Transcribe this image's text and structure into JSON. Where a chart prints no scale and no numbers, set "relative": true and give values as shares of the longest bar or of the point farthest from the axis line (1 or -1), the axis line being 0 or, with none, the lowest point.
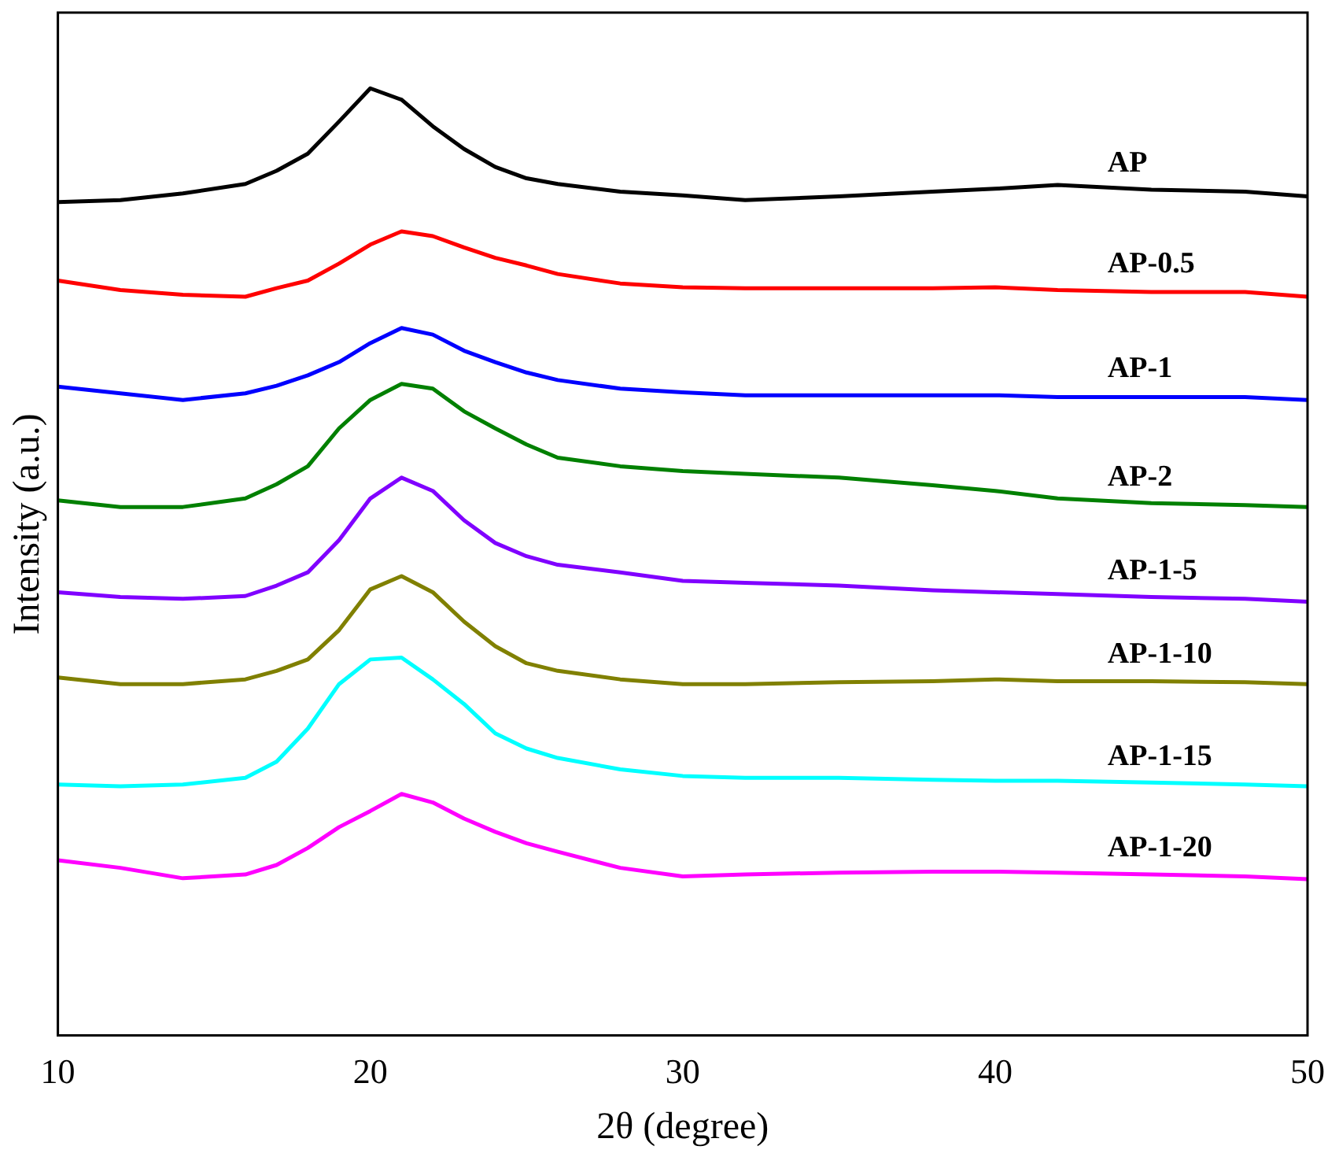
{
  "chart_data": {
    "type": "line",
    "relative": true,
    "xlabel": "2θ (degree)",
    "ylabel": "Intensity (a.u.)",
    "x": [
      10,
      12,
      14,
      16,
      17,
      18,
      19,
      20,
      21,
      22,
      23,
      24,
      25,
      26,
      28,
      30,
      32,
      35,
      38,
      40,
      42,
      45,
      48,
      50
    ],
    "xlim": [
      10,
      50
    ],
    "xticks": [
      10,
      20,
      30,
      40,
      50
    ],
    "grid": false,
    "legend": false,
    "marker": "none",
    "line_style": "solid",
    "series": [
      {
        "name": "AP",
        "color": "#000000",
        "values": [
          0.88,
          0.882,
          0.889,
          0.899,
          0.913,
          0.931,
          0.965,
          1,
          0.988,
          0.96,
          0.936,
          0.917,
          0.905,
          0.899,
          0.891,
          0.887,
          0.882,
          0.886,
          0.891,
          0.894,
          0.898,
          0.893,
          0.891,
          0.886
        ]
      },
      {
        "name": "AP-0.5",
        "color": "#ff0000",
        "values": [
          0.797,
          0.787,
          0.782,
          0.78,
          0.789,
          0.797,
          0.815,
          0.835,
          0.849,
          0.844,
          0.832,
          0.821,
          0.813,
          0.804,
          0.794,
          0.79,
          0.789,
          0.789,
          0.789,
          0.79,
          0.787,
          0.785,
          0.785,
          0.78
        ]
      },
      {
        "name": "AP-1",
        "color": "#0000ff",
        "values": [
          0.685,
          0.678,
          0.671,
          0.678,
          0.686,
          0.697,
          0.711,
          0.731,
          0.747,
          0.74,
          0.723,
          0.711,
          0.7,
          0.692,
          0.683,
          0.679,
          0.676,
          0.676,
          0.676,
          0.676,
          0.674,
          0.674,
          0.674,
          0.671
        ]
      },
      {
        "name": "AP-2",
        "color": "#008000",
        "values": [
          0.565,
          0.558,
          0.558,
          0.567,
          0.582,
          0.601,
          0.641,
          0.671,
          0.688,
          0.683,
          0.659,
          0.641,
          0.624,
          0.61,
          0.601,
          0.596,
          0.593,
          0.589,
          0.581,
          0.575,
          0.567,
          0.562,
          0.56,
          0.558
        ]
      },
      {
        "name": "AP-1-5",
        "color": "#8000ff",
        "values": [
          0.468,
          0.463,
          0.461,
          0.464,
          0.475,
          0.489,
          0.523,
          0.567,
          0.589,
          0.575,
          0.544,
          0.52,
          0.506,
          0.497,
          0.489,
          0.48,
          0.478,
          0.475,
          0.47,
          0.468,
          0.466,
          0.463,
          0.461,
          0.458
        ]
      },
      {
        "name": "AP-1-10",
        "color": "#808000",
        "values": [
          0.378,
          0.371,
          0.371,
          0.376,
          0.385,
          0.397,
          0.428,
          0.471,
          0.485,
          0.468,
          0.437,
          0.411,
          0.393,
          0.385,
          0.376,
          0.371,
          0.371,
          0.373,
          0.374,
          0.376,
          0.374,
          0.374,
          0.373,
          0.371
        ]
      },
      {
        "name": "AP-1-15",
        "color": "#00ffff",
        "values": [
          0.265,
          0.263,
          0.265,
          0.272,
          0.289,
          0.324,
          0.371,
          0.397,
          0.399,
          0.376,
          0.35,
          0.319,
          0.303,
          0.293,
          0.281,
          0.274,
          0.272,
          0.272,
          0.27,
          0.269,
          0.269,
          0.267,
          0.265,
          0.263
        ]
      },
      {
        "name": "AP-1-20",
        "color": "#ff00ff",
        "values": [
          0.185,
          0.177,
          0.166,
          0.17,
          0.18,
          0.198,
          0.22,
          0.237,
          0.255,
          0.246,
          0.229,
          0.215,
          0.203,
          0.194,
          0.177,
          0.168,
          0.17,
          0.172,
          0.173,
          0.173,
          0.172,
          0.17,
          0.168,
          0.165
        ]
      }
    ]
  }
}
